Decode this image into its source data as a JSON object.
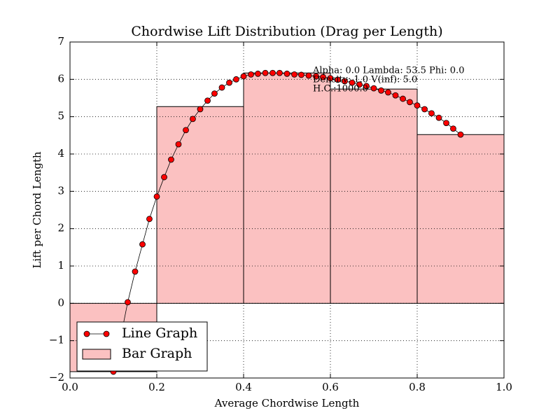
{
  "chart_data": {
    "type": "combo",
    "title": "Chordwise Lift Distribution (Drag per Length)",
    "x_label": "Average Chordwise Length",
    "y_label": "Lift per Chord Length",
    "annotations": [
      "Alpha:  0.0 Lambda: 53.5 Phi:  0.0",
      "Density:   1.0 V(inf):  5.0",
      "H.C.:1000.0"
    ],
    "xlim": [
      0,
      1
    ],
    "ylim": [
      -2,
      7
    ],
    "xticks": [
      {
        "value": 0,
        "label": "0.0"
      },
      0.2,
      0.4,
      0.6,
      0.8,
      {
        "value": 1,
        "label": "1.0"
      }
    ],
    "yticks": [
      {
        "value": -2,
        "label": "−2"
      },
      {
        "value": -1,
        "label": "−1"
      },
      0,
      1,
      2,
      3,
      4,
      5,
      6,
      7
    ],
    "grid": true,
    "legend": "lower left",
    "series": [
      {
        "name": "Line Graph",
        "type": "line",
        "color": "#ff0000",
        "x": [
          0.1,
          0.117,
          0.133,
          0.15,
          0.167,
          0.183,
          0.2,
          0.217,
          0.233,
          0.25,
          0.267,
          0.283,
          0.3,
          0.317,
          0.333,
          0.35,
          0.367,
          0.383,
          0.4,
          0.417,
          0.433,
          0.45,
          0.467,
          0.483,
          0.5,
          0.517,
          0.533,
          0.55,
          0.567,
          0.583,
          0.6,
          0.617,
          0.633,
          0.65,
          0.667,
          0.683,
          0.7,
          0.717,
          0.733,
          0.75,
          0.767,
          0.783,
          0.8,
          0.817,
          0.833,
          0.85,
          0.867,
          0.883,
          0.9
        ],
        "values": [
          -1.83,
          -0.9,
          0.03,
          0.85,
          1.58,
          2.26,
          2.86,
          3.38,
          3.85,
          4.26,
          4.64,
          4.94,
          5.2,
          5.43,
          5.62,
          5.78,
          5.91,
          6.0,
          6.08,
          6.13,
          6.15,
          6.17,
          6.17,
          6.17,
          6.15,
          6.13,
          6.12,
          6.1,
          6.08,
          6.06,
          6.03,
          5.99,
          5.95,
          5.91,
          5.86,
          5.82,
          5.76,
          5.7,
          5.65,
          5.57,
          5.48,
          5.39,
          5.3,
          5.2,
          5.09,
          4.97,
          4.83,
          4.68,
          4.52
        ]
      },
      {
        "name": "Bar Graph",
        "type": "bar",
        "color": "#fbc1c1",
        "bins": [
          0,
          0.2,
          0.4,
          0.6,
          0.8,
          1.0
        ],
        "values": [
          -1.83,
          5.27,
          6.17,
          5.74,
          4.52
        ]
      }
    ]
  }
}
